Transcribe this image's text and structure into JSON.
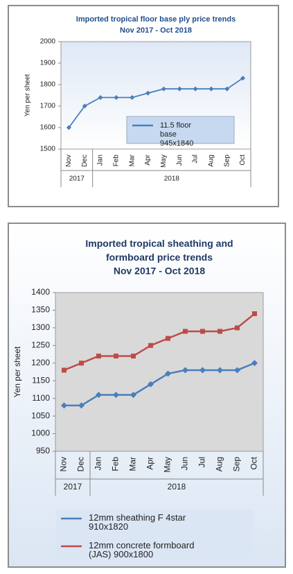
{
  "chart_data": [
    {
      "type": "line",
      "title": "Imported tropical floor base ply price trends",
      "subtitle": "Nov 2017 - Oct 2018",
      "y_label": "Yen per sheet",
      "groups": [
        {
          "label": "2017",
          "categories": [
            "Nov",
            "Dec"
          ]
        },
        {
          "label": "2018",
          "categories": [
            "Jan",
            "Feb",
            "Mar",
            "Apr",
            "May",
            "Jun",
            "Jul",
            "Aug",
            "Sep",
            "Oct"
          ]
        }
      ],
      "series": [
        {
          "name": "11.5 floor base 945x1840",
          "color": "#4a7ebb",
          "values": [
            1600,
            1700,
            1740,
            1740,
            1740,
            1760,
            1780,
            1780,
            1780,
            1780,
            1780,
            1830
          ]
        }
      ],
      "ylim": [
        1500,
        2000
      ],
      "yticks": [
        1500,
        1600,
        1700,
        1800,
        1900,
        2000
      ],
      "grid": false,
      "legend": "inside"
    },
    {
      "type": "line",
      "title": "Imported tropical sheathing and formboard price trends",
      "subtitle": "Nov 2017 - Oct 2018",
      "y_label": "Yen per sheet",
      "groups": [
        {
          "label": "2017",
          "categories": [
            "Nov",
            "Dec"
          ]
        },
        {
          "label": "2018",
          "categories": [
            "Jan",
            "Feb",
            "Mar",
            "Apr",
            "May",
            "Jun",
            "Jul",
            "Aug",
            "Sep",
            "Oct"
          ]
        }
      ],
      "series": [
        {
          "name": "12mm sheathing F 4star 910x1820",
          "color": "#4a7ebb",
          "values": [
            1080,
            1080,
            1110,
            1110,
            1110,
            1140,
            1170,
            1180,
            1180,
            1180,
            1180,
            1200
          ]
        },
        {
          "name": "12mm concrete formboard (JAS) 900x1800",
          "color": "#be4b48",
          "values": [
            1180,
            1200,
            1220,
            1220,
            1220,
            1250,
            1270,
            1290,
            1290,
            1290,
            1300,
            1340
          ]
        }
      ],
      "ylim": [
        950,
        1400
      ],
      "yticks": [
        950,
        1000,
        1050,
        1100,
        1150,
        1200,
        1250,
        1300,
        1350,
        1400
      ],
      "grid": false,
      "legend": "bottom"
    }
  ]
}
